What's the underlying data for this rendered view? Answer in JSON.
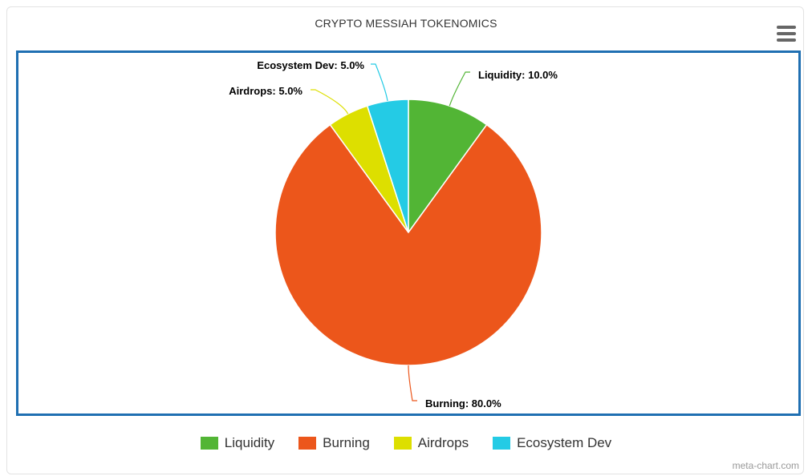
{
  "chart_data": {
    "type": "pie",
    "title": "CRYPTO MESSIAH TOKENOMICS",
    "slices": [
      {
        "name": "Liquidity",
        "value": 10.0,
        "label": "Liquidity: 10.0%",
        "color": "#52b535"
      },
      {
        "name": "Burning",
        "value": 80.0,
        "label": "Burning: 80.0%",
        "color": "#ec561b"
      },
      {
        "name": "Airdrops",
        "value": 5.0,
        "label": "Airdrops: 5.0%",
        "color": "#dddf00"
      },
      {
        "name": "Ecosystem Dev",
        "value": 5.0,
        "label": "Ecosystem Dev: 5.0%",
        "color": "#24cbe5"
      }
    ],
    "legend": {
      "position": "bottom",
      "items": [
        "Liquidity",
        "Burning",
        "Airdrops",
        "Ecosystem Dev"
      ]
    }
  },
  "ui": {
    "menu_icon": "hamburger-menu-icon",
    "credit": "meta-chart.com"
  }
}
